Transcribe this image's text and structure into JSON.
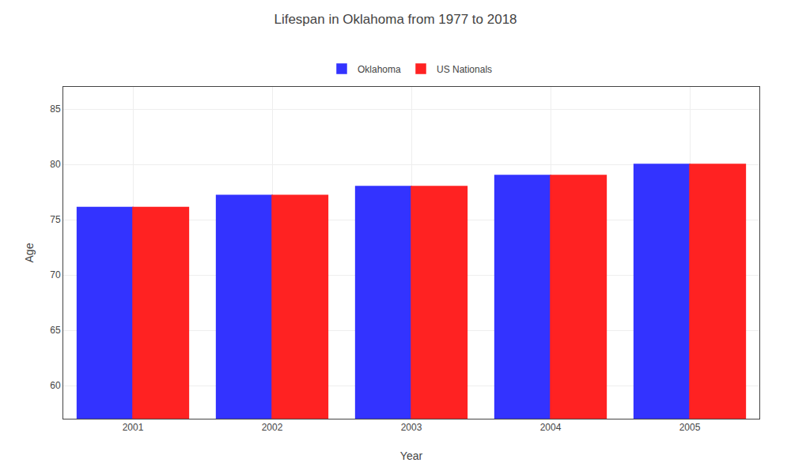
{
  "chart_data": {
    "type": "bar",
    "title": "Lifespan in Oklahoma from 1977 to 2018",
    "x_label": "Year",
    "y_label": "Age",
    "categories": [
      "2001",
      "2002",
      "2003",
      "2004",
      "2005"
    ],
    "series": [
      {
        "name": "Oklahoma",
        "color": "#3333ff",
        "values": [
          76.1,
          77.2,
          78.0,
          79.0,
          80.0
        ]
      },
      {
        "name": "US Nationals",
        "color": "#ff2222",
        "values": [
          76.1,
          77.2,
          78.0,
          79.0,
          80.0
        ]
      }
    ],
    "ylim": [
      57,
      87
    ],
    "yticks": [
      60,
      65,
      70,
      75,
      80,
      85
    ],
    "grid": true,
    "legend": "upper center"
  }
}
